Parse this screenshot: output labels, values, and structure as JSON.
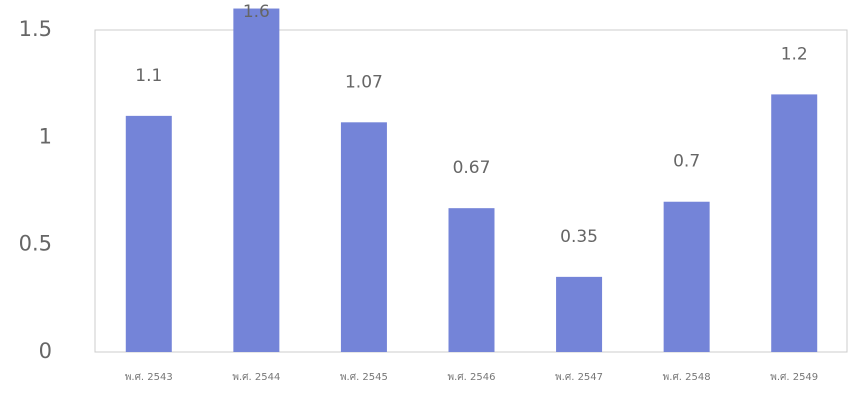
{
  "chart_data": {
    "type": "bar",
    "categories": [
      "พ.ศ. 2543",
      "พ.ศ. 2544",
      "พ.ศ. 2545",
      "พ.ศ. 2546",
      "พ.ศ. 2547",
      "พ.ศ. 2548",
      "พ.ศ. 2549"
    ],
    "values": [
      1.1,
      1.6,
      1.07,
      0.67,
      0.35,
      0.7,
      1.2
    ],
    "color": "#7484d8",
    "ylim": [
      0,
      1.5
    ],
    "yticks": [
      0,
      0.5,
      1,
      1.5
    ],
    "grid": false
  }
}
